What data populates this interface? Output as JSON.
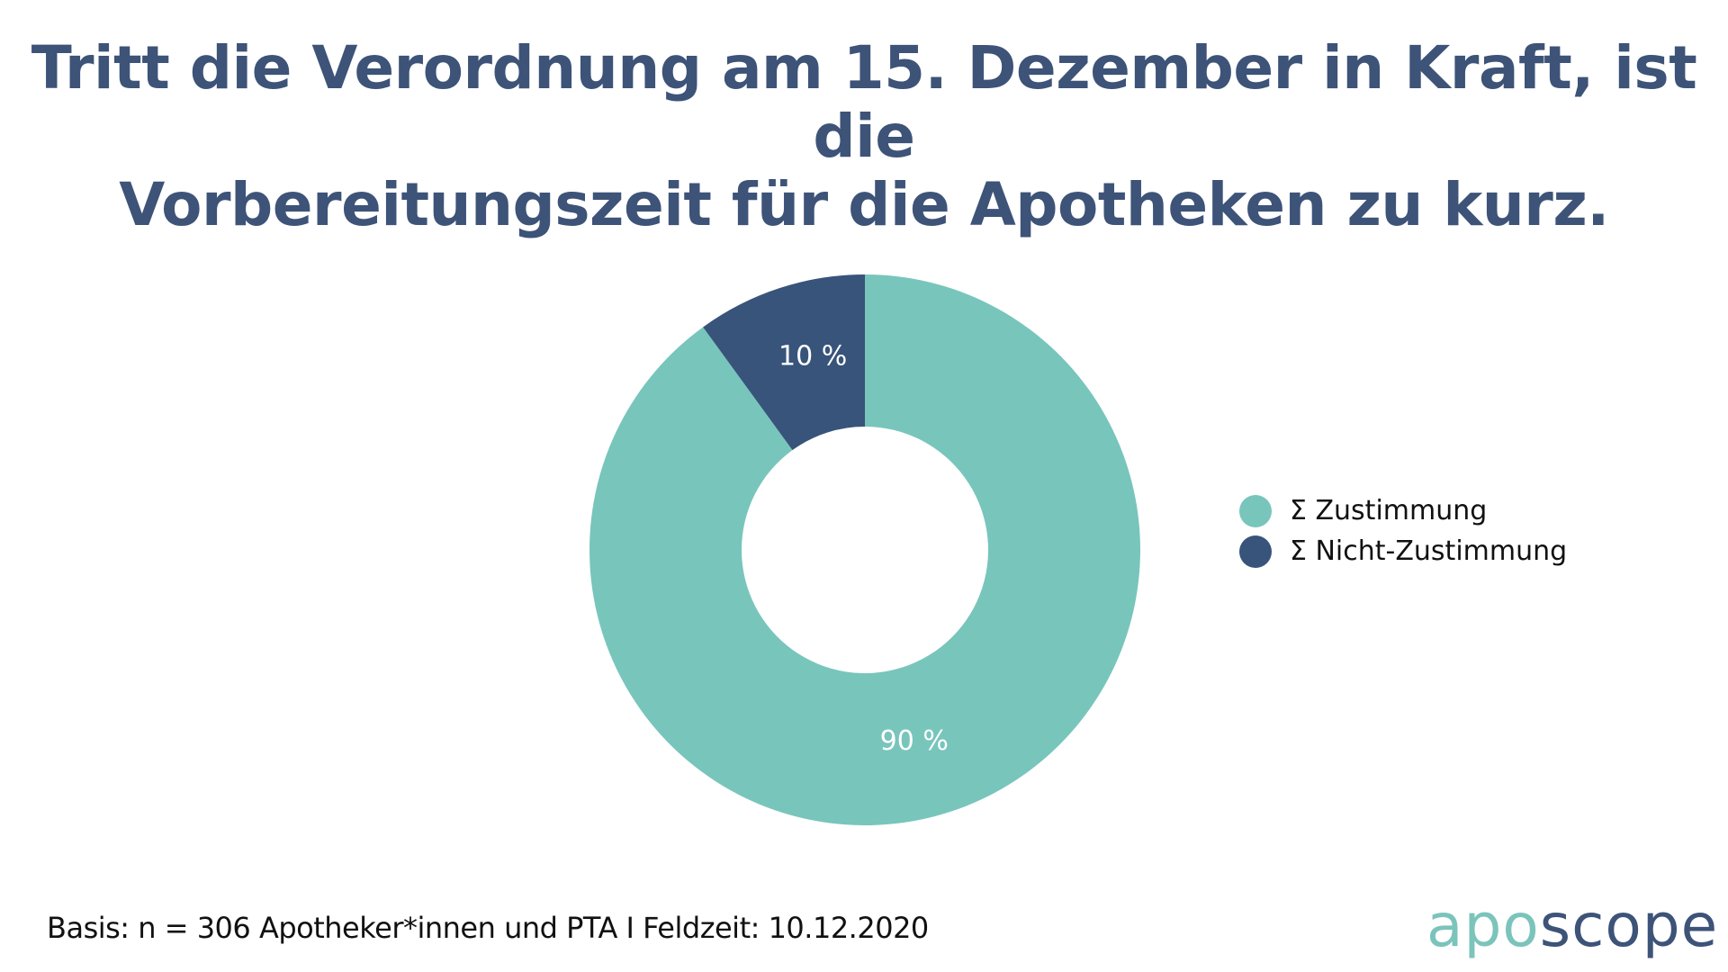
{
  "header": {
    "title_lines": [
      "Tritt die Verordnung am 15. Dezember in Kraft, ist die",
      "Vorbereitungszeit für die Apotheken zu kurz."
    ]
  },
  "chart_data": {
    "type": "pie",
    "subtype": "donut",
    "title": "Tritt die Verordnung am 15. Dezember in Kraft, ist die Vorbereitungszeit für die Apotheken zu kurz.",
    "categories": [
      "Σ Zustimmung",
      "Σ Nicht-Zustimmung"
    ],
    "values": [
      90,
      10
    ],
    "unit": "%",
    "data_labels": [
      "90 %",
      "10 %"
    ],
    "colors": [
      "#78c5bc",
      "#38547a"
    ],
    "start": "top, clockwise",
    "legend_position": "right"
  },
  "legend": {
    "items": [
      {
        "label": "Σ Zustimmung",
        "color": "#78c5bc"
      },
      {
        "label": "Σ Nicht-Zustimmung",
        "color": "#38547a"
      }
    ]
  },
  "footer": {
    "basis": "Basis: n = 306 Apotheker*innen und PTA I Feldzeit: 10.12.2020"
  },
  "logo": {
    "part1": "apo",
    "part2": "scope",
    "colors": {
      "part1": "#7bc4bb",
      "part2": "#3d5378"
    }
  }
}
